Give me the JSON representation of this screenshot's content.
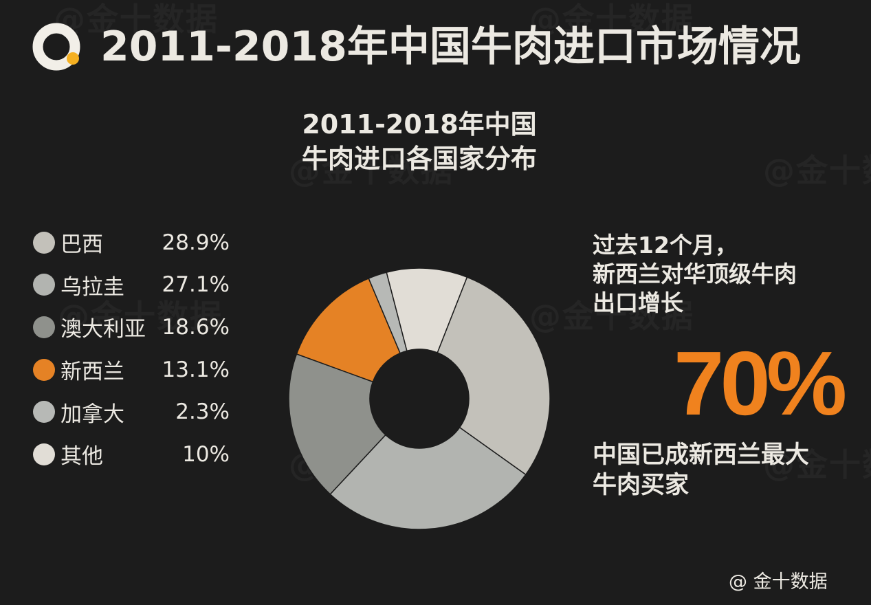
{
  "header": {
    "title": "2011-2018年中国牛肉进口市场情况"
  },
  "watermark_text": "@金十数据",
  "chart_data": {
    "type": "pie",
    "title_lines": [
      "2011-2018年中国",
      "牛肉进口各国家分布"
    ],
    "unit": "%",
    "legend_position": "left",
    "donut": true,
    "slices": [
      {
        "label": "巴西",
        "value": 28.9,
        "display": "28.9%",
        "color": "#c3c1ba"
      },
      {
        "label": "乌拉圭",
        "value": 27.1,
        "display": "27.1%",
        "color": "#b2b4b0"
      },
      {
        "label": "澳大利亚",
        "value": 18.6,
        "display": "18.6%",
        "color": "#8f918c"
      },
      {
        "label": "新西兰",
        "value": 13.1,
        "display": "13.1%",
        "color": "#e58225"
      },
      {
        "label": "加拿大",
        "value": 2.3,
        "display": "2.3%",
        "color": "#b7b9b6"
      },
      {
        "label": "其他",
        "value": 10,
        "display": "10%",
        "color": "#e1ddd6"
      }
    ]
  },
  "callout": {
    "lines": [
      "过去12个月，",
      "新西兰对华顶级牛肉",
      "出口增长"
    ],
    "highlight_value": "70%",
    "highlight_color": "#f0821e",
    "conclusion_lines": [
      "中国已成新西兰最大",
      "牛肉买家"
    ]
  },
  "footer": {
    "source": "@ 金十数据"
  }
}
